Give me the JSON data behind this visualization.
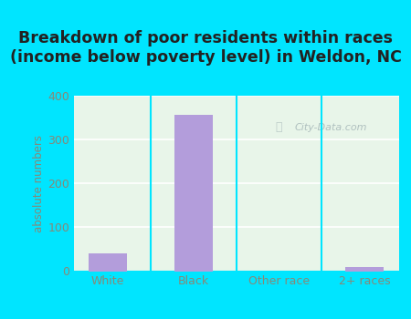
{
  "categories": [
    "White",
    "Black",
    "Other race",
    "2+ races"
  ],
  "values": [
    40,
    357,
    0,
    10
  ],
  "bar_color": "#b39ddb",
  "title": "Breakdown of poor residents within races\n(income below poverty level) in Weldon, NC",
  "ylabel": "absolute numbers",
  "ylim": [
    0,
    400
  ],
  "yticks": [
    0,
    100,
    200,
    300,
    400
  ],
  "background_color": "#00e5ff",
  "plot_bg_top": "#e8f5e9",
  "plot_bg_bottom": "#f5fff5",
  "title_fontsize": 12.5,
  "label_fontsize": 8.5,
  "tick_fontsize": 9,
  "watermark": "City-Data.com",
  "ylabel_color": "#888877",
  "tick_color": "#888877",
  "title_color": "#222222"
}
